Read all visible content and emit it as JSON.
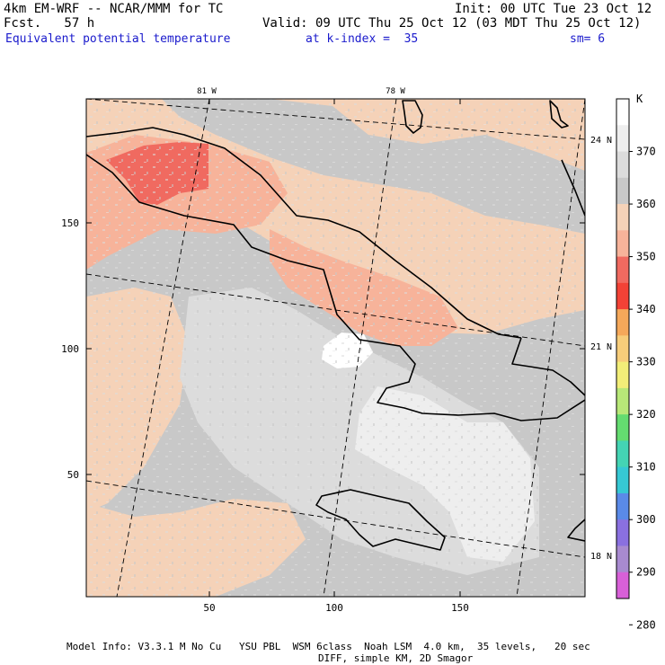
{
  "header": {
    "model": "4km EM-WRF -- NCAR/MMM for TC",
    "forecast": "Fcst.   57 h",
    "init": "Init: 00 UTC Tue 23 Oct 12",
    "valid": "Valid: 09 UTC Thu 25 Oct 12 (03 MDT Thu 25 Oct 12)",
    "field": "Equivalent potential temperature",
    "level": "at k-index =  35",
    "smoothing": "sm= 6"
  },
  "axes": {
    "x_ticks": [
      "50",
      "100",
      "150"
    ],
    "y_ticks": [
      "150",
      "100",
      "50"
    ]
  },
  "map_labels": {
    "lon_top": [
      "81 W",
      "78 W"
    ],
    "lat_right": [
      "24 N",
      "21 N",
      "18 N"
    ]
  },
  "colorbar": {
    "unit": "K",
    "levels": [
      "370",
      "360",
      "350",
      "340",
      "330",
      "320",
      "310",
      "300",
      "290",
      "280"
    ],
    "colors": [
      "#ffffff",
      "#eeeeee",
      "#dcdcdc",
      "#c8c8c8",
      "#f5d2b8",
      "#f7b39a",
      "#f06a60",
      "#f24236",
      "#f5a85a",
      "#f7cd7a",
      "#f2ee78",
      "#b8e878",
      "#64dc70",
      "#44d4b4",
      "#36c8d4",
      "#5a8ae8",
      "#8a70e0",
      "#a88ad0",
      "#d860d8"
    ]
  },
  "footer": {
    "line1": "Model Info: V3.3.1 M No Cu   YSU PBL  WSM 6class  Noah LSM  4.0 km,  35 levels,   20 sec",
    "line2": "DIFF, simple KM, 2D Smagor"
  }
}
